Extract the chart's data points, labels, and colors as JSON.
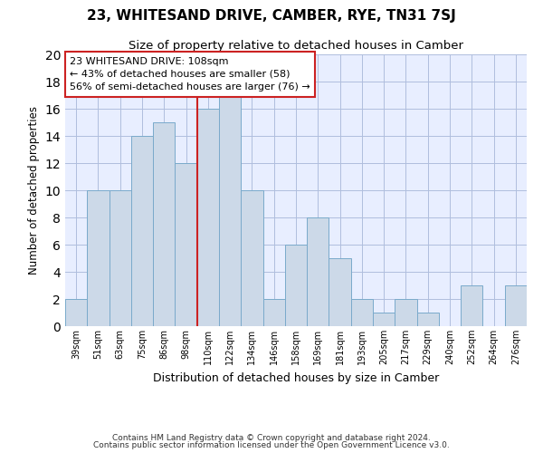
{
  "title": "23, WHITESAND DRIVE, CAMBER, RYE, TN31 7SJ",
  "subtitle": "Size of property relative to detached houses in Camber",
  "xlabel": "Distribution of detached houses by size in Camber",
  "ylabel": "Number of detached properties",
  "categories": [
    "39sqm",
    "51sqm",
    "63sqm",
    "75sqm",
    "86sqm",
    "98sqm",
    "110sqm",
    "122sqm",
    "134sqm",
    "146sqm",
    "158sqm",
    "169sqm",
    "181sqm",
    "193sqm",
    "205sqm",
    "217sqm",
    "229sqm",
    "240sqm",
    "252sqm",
    "264sqm",
    "276sqm"
  ],
  "values": [
    2,
    10,
    10,
    14,
    15,
    12,
    16,
    17,
    10,
    2,
    6,
    8,
    5,
    2,
    1,
    2,
    1,
    0,
    3,
    0,
    3
  ],
  "bar_color": "#ccd9e8",
  "bar_edge_color": "#7aaacb",
  "subject_label": "23 WHITESAND DRIVE: 108sqm",
  "smaller_pct": "43% of detached houses are smaller (58)",
  "larger_pct": "56% of semi-detached houses are larger (76)",
  "annotation_box_edge_color": "#cc2222",
  "vline_color": "#cc2222",
  "bg_color": "#e8eeff",
  "grid_color": "#b0bedd",
  "footer1": "Contains HM Land Registry data © Crown copyright and database right 2024.",
  "footer2": "Contains public sector information licensed under the Open Government Licence v3.0.",
  "ylim": [
    0,
    20
  ],
  "yticks": [
    0,
    2,
    4,
    6,
    8,
    10,
    12,
    14,
    16,
    18,
    20
  ]
}
